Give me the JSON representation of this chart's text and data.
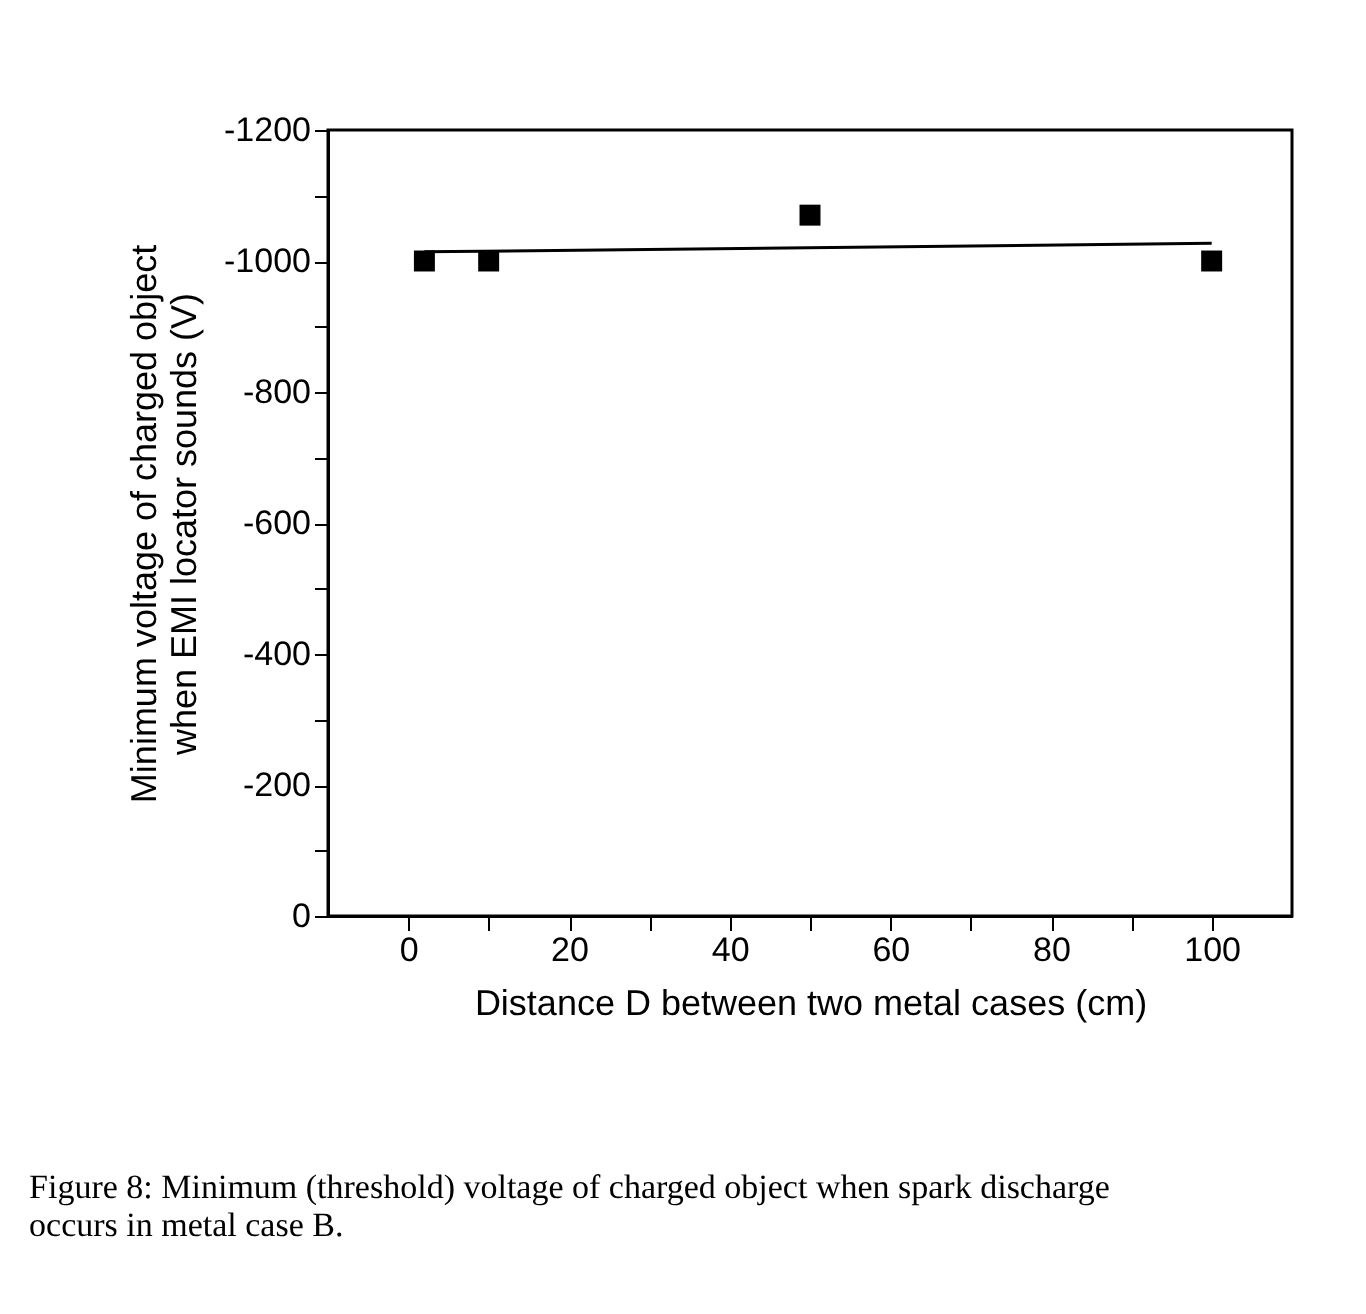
{
  "chart_data": {
    "type": "scatter",
    "xlabel": "Distance D between two metal cases (cm)",
    "ylabel": "Minimum voltage of charged object\nwhen EMI locator sounds (V)",
    "annotations": [
      "Figure 8: Minimum (threshold) voltage of charged object when spark discharge occurs in metal case B."
    ],
    "series": [
      {
        "color": "#000000",
        "marker": "square",
        "x": [
          2,
          10,
          50,
          100
        ],
        "values": [
          -1000,
          -1000,
          -1070,
          -1000
        ]
      },
      {
        "type": "line",
        "color": "#000000",
        "line_style": "solid",
        "marker": "none",
        "x": [
          2,
          100
        ],
        "values": [
          -1014,
          -1027
        ]
      }
    ],
    "xlim": [
      -10,
      110
    ],
    "xticks": [
      0,
      {
        "value": 10,
        "label": null
      },
      20,
      {
        "value": 30,
        "label": null
      },
      40,
      {
        "value": 50,
        "label": null
      },
      60,
      {
        "value": 70,
        "label": null
      },
      80,
      {
        "value": 90,
        "label": null
      },
      100
    ],
    "ylim": [
      0,
      -1200
    ],
    "yticks": [
      0,
      {
        "value": -100,
        "label": null
      },
      -200,
      {
        "value": -300,
        "label": null
      },
      -400,
      {
        "value": -500,
        "label": null
      },
      -600,
      {
        "value": -700,
        "label": null
      },
      -800,
      {
        "value": -900,
        "label": null
      },
      -1000,
      {
        "value": -1100,
        "label": null
      },
      -1200
    ],
    "grid": false
  }
}
